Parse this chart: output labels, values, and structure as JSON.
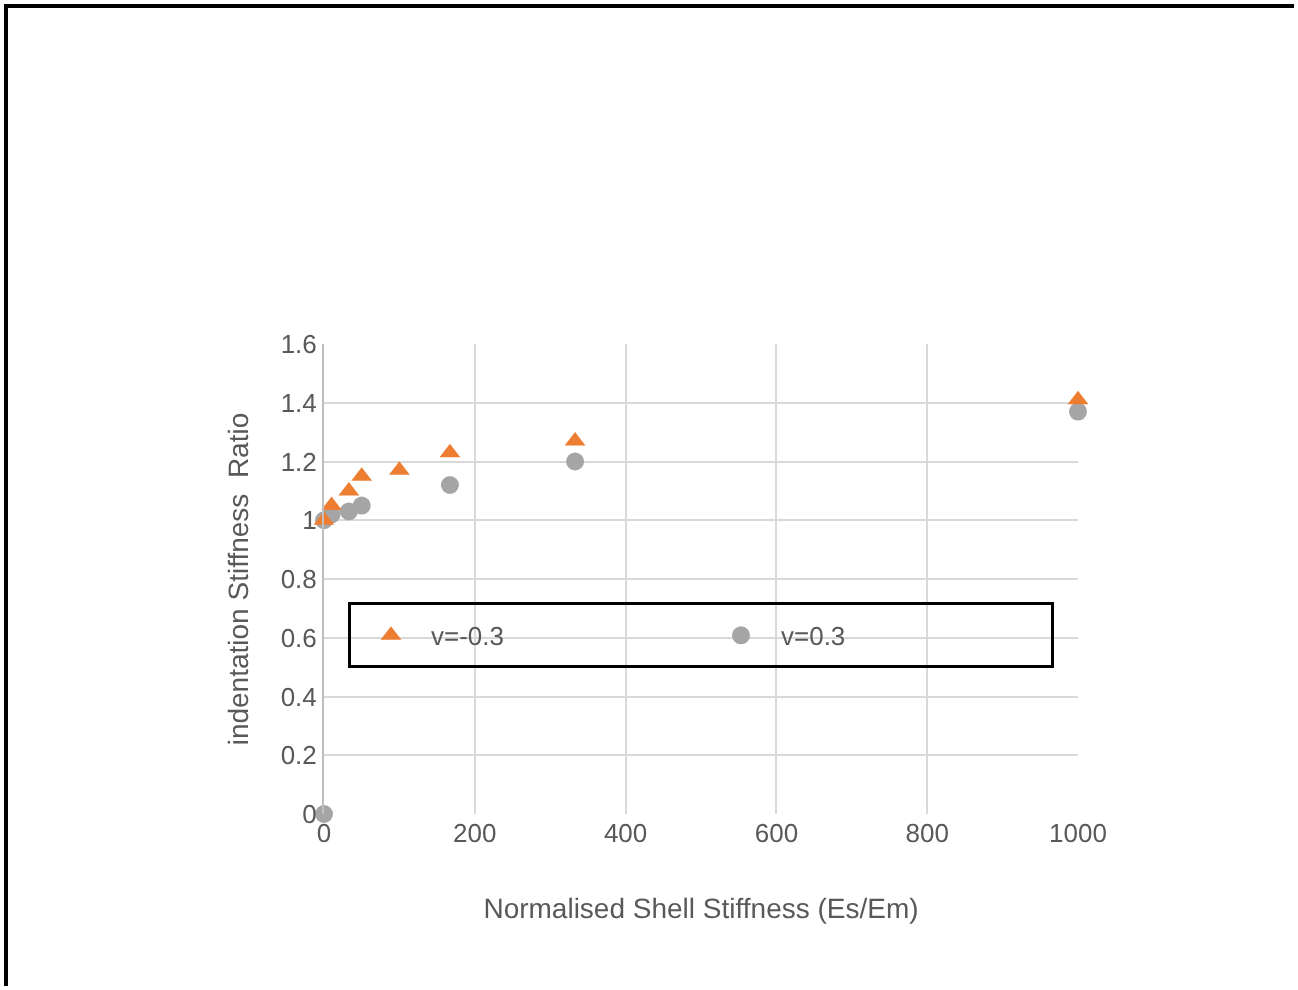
{
  "chart_data": {
    "type": "scatter",
    "xlabel": "Normalised Shell Stiffness (Es/Em)",
    "ylabel": "indentation Stiffness  Ratio",
    "series": [
      {
        "name": "v=-0.3",
        "color": "#ed7d31",
        "marker": "triangle",
        "x": [
          0,
          10,
          33,
          50,
          100,
          167,
          333,
          1000
        ],
        "values": [
          1.0,
          1.05,
          1.1,
          1.15,
          1.17,
          1.23,
          1.27,
          1.41
        ]
      },
      {
        "name": "v=0.3",
        "color": "#a5a5a5",
        "marker": "circle",
        "x": [
          0,
          0,
          10,
          33,
          50,
          167,
          333,
          1000
        ],
        "values": [
          0,
          1.0,
          1.02,
          1.03,
          1.05,
          1.12,
          1.2,
          1.37
        ]
      }
    ],
    "xlim": [
      0,
      1000
    ],
    "xticks": [
      0,
      200,
      400,
      600,
      800,
      1000
    ],
    "ylim": [
      0,
      1.6
    ],
    "yticks": [
      0,
      0.2,
      0.4,
      0.6,
      0.8,
      1,
      1.2,
      1.4,
      1.6
    ],
    "grid": true,
    "legend": "center"
  }
}
